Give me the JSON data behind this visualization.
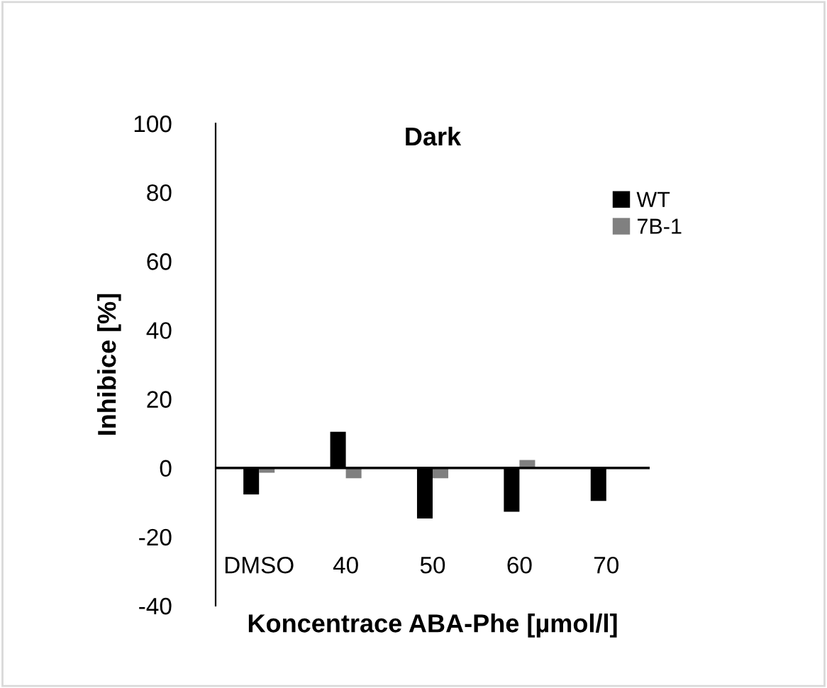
{
  "chart_data": {
    "type": "bar",
    "title": "Dark",
    "xlabel": "Koncentrace ABA-Phe [µmol/l]",
    "ylabel": "Inhibice [%]",
    "categories": [
      "DMSO",
      "40",
      "50",
      "60",
      "70"
    ],
    "series": [
      {
        "name": "WT",
        "color": "#000000",
        "values": [
          -7.7,
          10.5,
          -14.7,
          -12.7,
          -9.6
        ]
      },
      {
        "name": "7B-1",
        "color": "#808080",
        "values": [
          -1.4,
          -3,
          -3,
          2.3,
          0
        ]
      }
    ],
    "ylim": [
      -40,
      100
    ],
    "yticks": [
      -40,
      -20,
      0,
      20,
      40,
      60,
      80,
      100
    ],
    "grid": false,
    "ref_lines": [
      {
        "axis": "y",
        "value": 0,
        "color": "#000000"
      }
    ],
    "legend": "top right"
  }
}
